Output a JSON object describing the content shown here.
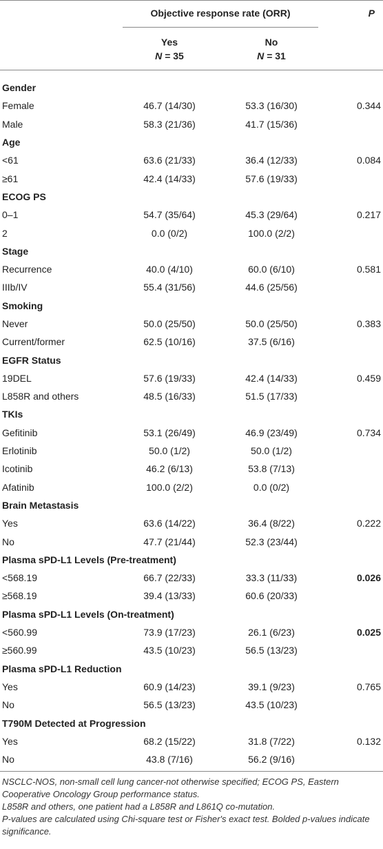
{
  "header": {
    "orr_title": "Objective response rate (ORR)",
    "p_title": "P",
    "yes_label": "Yes",
    "yes_n_symbol": "N",
    "yes_n_value": "= 35",
    "no_label": "No",
    "no_n_symbol": "N",
    "no_n_value": "= 31"
  },
  "rows": [
    {
      "type": "group",
      "label": "Gender"
    },
    {
      "type": "row",
      "label": "Female",
      "yes": "46.7 (14/30)",
      "no": "53.3 (16/30)",
      "p": "0.344"
    },
    {
      "type": "row",
      "label": "Male",
      "yes": "58.3 (21/36)",
      "no": "41.7 (15/36)",
      "p": ""
    },
    {
      "type": "group",
      "label": "Age"
    },
    {
      "type": "row",
      "label": "<61",
      "yes": "63.6 (21/33)",
      "no": "36.4 (12/33)",
      "p": "0.084"
    },
    {
      "type": "row",
      "label": "≥61",
      "yes": "42.4 (14/33)",
      "no": "57.6 (19/33)",
      "p": ""
    },
    {
      "type": "group",
      "label": "ECOG PS"
    },
    {
      "type": "row",
      "label": "0–1",
      "yes": "54.7 (35/64)",
      "no": "45.3 (29/64)",
      "p": "0.217"
    },
    {
      "type": "row",
      "label": "2",
      "yes": "0.0 (0/2)",
      "no": "100.0 (2/2)",
      "p": ""
    },
    {
      "type": "group",
      "label": "Stage"
    },
    {
      "type": "row",
      "label": "Recurrence",
      "yes": "40.0 (4/10)",
      "no": "60.0 (6/10)",
      "p": "0.581"
    },
    {
      "type": "row",
      "label": "IIIb/IV",
      "yes": "55.4 (31/56)",
      "no": "44.6 (25/56)",
      "p": ""
    },
    {
      "type": "group",
      "label": "Smoking"
    },
    {
      "type": "row",
      "label": "Never",
      "yes": "50.0 (25/50)",
      "no": "50.0 (25/50)",
      "p": "0.383"
    },
    {
      "type": "row",
      "label": "Current/former",
      "yes": "62.5 (10/16)",
      "no": "37.5 (6/16)",
      "p": ""
    },
    {
      "type": "group",
      "label": "EGFR Status"
    },
    {
      "type": "row",
      "label": "19DEL",
      "yes": "57.6 (19/33)",
      "no": "42.4 (14/33)",
      "p": "0.459"
    },
    {
      "type": "row",
      "label": "L858R and others",
      "yes": "48.5 (16/33)",
      "no": "51.5 (17/33)",
      "p": ""
    },
    {
      "type": "group",
      "label": "TKIs"
    },
    {
      "type": "row",
      "label": "Gefitinib",
      "yes": "53.1 (26/49)",
      "no": "46.9 (23/49)",
      "p": "0.734"
    },
    {
      "type": "row",
      "label": "Erlotinib",
      "yes": "50.0 (1/2)",
      "no": "50.0 (1/2)",
      "p": ""
    },
    {
      "type": "row",
      "label": "Icotinib",
      "yes": "46.2 (6/13)",
      "no": "53.8 (7/13)",
      "p": ""
    },
    {
      "type": "row",
      "label": "Afatinib",
      "yes": "100.0 (2/2)",
      "no": "0.0 (0/2)",
      "p": ""
    },
    {
      "type": "group",
      "label": "Brain Metastasis"
    },
    {
      "type": "row",
      "label": "Yes",
      "yes": "63.6 (14/22)",
      "no": "36.4 (8/22)",
      "p": "0.222"
    },
    {
      "type": "row",
      "label": "No",
      "yes": "47.7 (21/44)",
      "no": "52.3 (23/44)",
      "p": ""
    },
    {
      "type": "group",
      "label": "Plasma sPD-L1 Levels (Pre-treatment)"
    },
    {
      "type": "row",
      "label": "<568.19",
      "yes": "66.7 (22/33)",
      "no": "33.3 (11/33)",
      "p": "0.026",
      "p_bold": true
    },
    {
      "type": "row",
      "label": "≥568.19",
      "yes": "39.4 (13/33)",
      "no": "60.6 (20/33)",
      "p": ""
    },
    {
      "type": "group",
      "label": "Plasma sPD-L1 Levels (On-treatment)"
    },
    {
      "type": "row",
      "label": "<560.99",
      "yes": "73.9 (17/23)",
      "no": "26.1 (6/23)",
      "p": "0.025",
      "p_bold": true
    },
    {
      "type": "row",
      "label": "≥560.99",
      "yes": "43.5 (10/23)",
      "no": "56.5 (13/23)",
      "p": ""
    },
    {
      "type": "group",
      "label": "Plasma sPD-L1 Reduction"
    },
    {
      "type": "row",
      "label": "Yes",
      "yes": "60.9 (14/23)",
      "no": "39.1 (9/23)",
      "p": "0.765"
    },
    {
      "type": "row",
      "label": "No",
      "yes": "56.5 (13/23)",
      "no": "43.5 (10/23)",
      "p": ""
    },
    {
      "type": "group",
      "label": "T790M Detected at Progression"
    },
    {
      "type": "row",
      "label": "Yes",
      "yes": "68.2 (15/22)",
      "no": "31.8 (7/22)",
      "p": "0.132"
    },
    {
      "type": "row",
      "label": "No",
      "yes": "43.8 (7/16)",
      "no": "56.2 (9/16)",
      "p": ""
    }
  ],
  "footnotes": [
    "NSCLC-NOS, non-small cell lung cancer-not otherwise specified; ECOG PS, Eastern Cooperative Oncology Group performance status.",
    "L858R and others, one patient had a L858R and L861Q co-mutation.",
    "P-values are calculated using Chi-square test or Fisher's exact test. Bolded p-values indicate significance."
  ]
}
